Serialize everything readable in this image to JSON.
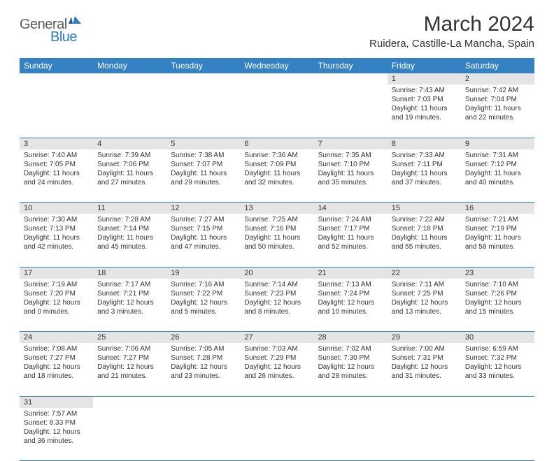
{
  "logo": {
    "text1": "General",
    "text2": "Blue"
  },
  "title": "March 2024",
  "subtitle": "Ruidera, Castille-La Mancha, Spain",
  "colors": {
    "header_bg": "#3481c4",
    "header_fg": "#ffffff",
    "daynum_bg": "#e5e5e5",
    "border": "#3481c4",
    "logo_gray": "#5a5a5a",
    "logo_blue": "#2a7ab8"
  },
  "day_headers": [
    "Sunday",
    "Monday",
    "Tuesday",
    "Wednesday",
    "Thursday",
    "Friday",
    "Saturday"
  ],
  "weeks": [
    [
      null,
      null,
      null,
      null,
      null,
      {
        "n": "1",
        "sr": "7:43 AM",
        "ss": "7:03 PM",
        "dl": "11 hours and 19 minutes."
      },
      {
        "n": "2",
        "sr": "7:42 AM",
        "ss": "7:04 PM",
        "dl": "11 hours and 22 minutes."
      }
    ],
    [
      {
        "n": "3",
        "sr": "7:40 AM",
        "ss": "7:05 PM",
        "dl": "11 hours and 24 minutes."
      },
      {
        "n": "4",
        "sr": "7:39 AM",
        "ss": "7:06 PM",
        "dl": "11 hours and 27 minutes."
      },
      {
        "n": "5",
        "sr": "7:38 AM",
        "ss": "7:07 PM",
        "dl": "11 hours and 29 minutes."
      },
      {
        "n": "6",
        "sr": "7:36 AM",
        "ss": "7:09 PM",
        "dl": "11 hours and 32 minutes."
      },
      {
        "n": "7",
        "sr": "7:35 AM",
        "ss": "7:10 PM",
        "dl": "11 hours and 35 minutes."
      },
      {
        "n": "8",
        "sr": "7:33 AM",
        "ss": "7:11 PM",
        "dl": "11 hours and 37 minutes."
      },
      {
        "n": "9",
        "sr": "7:31 AM",
        "ss": "7:12 PM",
        "dl": "11 hours and 40 minutes."
      }
    ],
    [
      {
        "n": "10",
        "sr": "7:30 AM",
        "ss": "7:13 PM",
        "dl": "11 hours and 42 minutes."
      },
      {
        "n": "11",
        "sr": "7:28 AM",
        "ss": "7:14 PM",
        "dl": "11 hours and 45 minutes."
      },
      {
        "n": "12",
        "sr": "7:27 AM",
        "ss": "7:15 PM",
        "dl": "11 hours and 47 minutes."
      },
      {
        "n": "13",
        "sr": "7:25 AM",
        "ss": "7:16 PM",
        "dl": "11 hours and 50 minutes."
      },
      {
        "n": "14",
        "sr": "7:24 AM",
        "ss": "7:17 PM",
        "dl": "11 hours and 52 minutes."
      },
      {
        "n": "15",
        "sr": "7:22 AM",
        "ss": "7:18 PM",
        "dl": "11 hours and 55 minutes."
      },
      {
        "n": "16",
        "sr": "7:21 AM",
        "ss": "7:19 PM",
        "dl": "11 hours and 58 minutes."
      }
    ],
    [
      {
        "n": "17",
        "sr": "7:19 AM",
        "ss": "7:20 PM",
        "dl": "12 hours and 0 minutes."
      },
      {
        "n": "18",
        "sr": "7:17 AM",
        "ss": "7:21 PM",
        "dl": "12 hours and 3 minutes."
      },
      {
        "n": "19",
        "sr": "7:16 AM",
        "ss": "7:22 PM",
        "dl": "12 hours and 5 minutes."
      },
      {
        "n": "20",
        "sr": "7:14 AM",
        "ss": "7:23 PM",
        "dl": "12 hours and 8 minutes."
      },
      {
        "n": "21",
        "sr": "7:13 AM",
        "ss": "7:24 PM",
        "dl": "12 hours and 10 minutes."
      },
      {
        "n": "22",
        "sr": "7:11 AM",
        "ss": "7:25 PM",
        "dl": "12 hours and 13 minutes."
      },
      {
        "n": "23",
        "sr": "7:10 AM",
        "ss": "7:26 PM",
        "dl": "12 hours and 15 minutes."
      }
    ],
    [
      {
        "n": "24",
        "sr": "7:08 AM",
        "ss": "7:27 PM",
        "dl": "12 hours and 18 minutes."
      },
      {
        "n": "25",
        "sr": "7:06 AM",
        "ss": "7:27 PM",
        "dl": "12 hours and 21 minutes."
      },
      {
        "n": "26",
        "sr": "7:05 AM",
        "ss": "7:28 PM",
        "dl": "12 hours and 23 minutes."
      },
      {
        "n": "27",
        "sr": "7:03 AM",
        "ss": "7:29 PM",
        "dl": "12 hours and 26 minutes."
      },
      {
        "n": "28",
        "sr": "7:02 AM",
        "ss": "7:30 PM",
        "dl": "12 hours and 28 minutes."
      },
      {
        "n": "29",
        "sr": "7:00 AM",
        "ss": "7:31 PM",
        "dl": "12 hours and 31 minutes."
      },
      {
        "n": "30",
        "sr": "6:59 AM",
        "ss": "7:32 PM",
        "dl": "12 hours and 33 minutes."
      }
    ],
    [
      {
        "n": "31",
        "sr": "7:57 AM",
        "ss": "8:33 PM",
        "dl": "12 hours and 36 minutes."
      },
      null,
      null,
      null,
      null,
      null,
      null
    ]
  ],
  "labels": {
    "sunrise": "Sunrise: ",
    "sunset": "Sunset: ",
    "daylight": "Daylight: "
  }
}
